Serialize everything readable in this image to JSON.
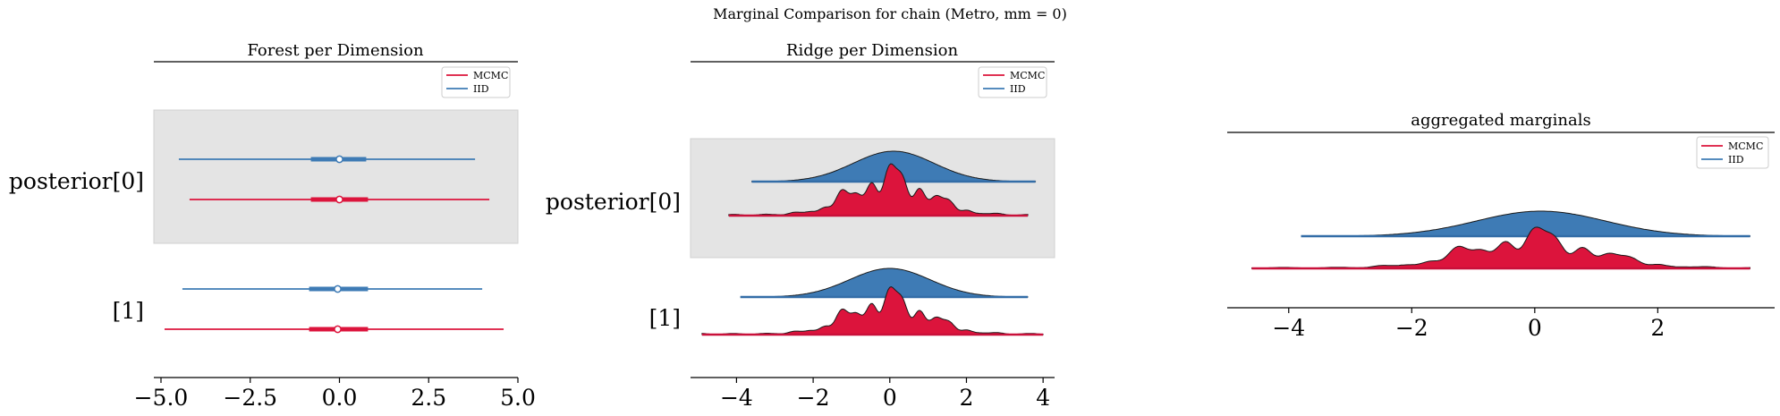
{
  "suptitle": "Marginal Comparison for chain (Metro, mm = 0)",
  "colors": {
    "mcmc": "#dc143c",
    "mcmc_dark": "#c9103a",
    "iid": "#3e7bb5",
    "iid_dark": "#336da7",
    "band": "#e4e4e4"
  },
  "chart_data": [
    {
      "type": "forest",
      "title": "Forest per Dimension",
      "xlabel": "",
      "ylabel": "",
      "xlim": [
        -5.2,
        5.0
      ],
      "xticks": [
        -5.0,
        -2.5,
        0.0,
        2.5,
        5.0
      ],
      "xtick_labels": [
        "−5.0",
        "−2.5",
        "0.0",
        "2.5",
        "5.0"
      ],
      "row_labels": [
        "posterior[0]",
        "[1]"
      ],
      "legend": {
        "placement": "top-right",
        "entries": [
          "MCMC",
          "IID"
        ]
      },
      "series": [
        {
          "name": "IID",
          "row": 0,
          "hdi": [
            -4.5,
            3.8
          ],
          "quartiles": [
            -0.8,
            0.75
          ],
          "median": 0.0
        },
        {
          "name": "MCMC",
          "row": 0,
          "hdi": [
            -4.2,
            4.2
          ],
          "quartiles": [
            -0.8,
            0.8
          ],
          "median": 0.0
        },
        {
          "name": "IID",
          "row": 1,
          "hdi": [
            -4.4,
            4.0
          ],
          "quartiles": [
            -0.85,
            0.8
          ],
          "median": -0.05
        },
        {
          "name": "MCMC",
          "row": 1,
          "hdi": [
            -4.9,
            4.6
          ],
          "quartiles": [
            -0.85,
            0.8
          ],
          "median": -0.05
        }
      ]
    },
    {
      "type": "ridge",
      "title": "Ridge per Dimension",
      "xlabel": "",
      "ylabel": "",
      "xlim": [
        -5.2,
        4.3
      ],
      "xticks": [
        -4,
        -2,
        0,
        2,
        4
      ],
      "xtick_labels": [
        "−4",
        "−2",
        "0",
        "2",
        "4"
      ],
      "row_labels": [
        "posterior[0]",
        "[1]"
      ],
      "legend": {
        "placement": "top-right",
        "entries": [
          "MCMC",
          "IID"
        ]
      },
      "series": [
        {
          "name": "IID",
          "row": 0,
          "range": [
            -3.6,
            3.8
          ],
          "smooth": true,
          "mean": 0.1,
          "sd": 1.05
        },
        {
          "name": "MCMC",
          "row": 0,
          "range": [
            -4.2,
            3.6
          ],
          "smooth": false,
          "mean": 0.0,
          "sd": 1.0
        },
        {
          "name": "IID",
          "row": 1,
          "range": [
            -3.9,
            3.6
          ],
          "smooth": true,
          "mean": 0.0,
          "sd": 1.05
        },
        {
          "name": "MCMC",
          "row": 1,
          "range": [
            -4.9,
            4.0
          ],
          "smooth": false,
          "mean": -0.05,
          "sd": 1.0
        }
      ]
    },
    {
      "type": "ridge",
      "title": "aggregated marginals",
      "xlabel": "",
      "ylabel": "",
      "xlim": [
        -5.0,
        3.9
      ],
      "xticks": [
        -4,
        -2,
        0,
        2
      ],
      "xtick_labels": [
        "−4",
        "−2",
        "0",
        "2"
      ],
      "row_labels": [],
      "legend": {
        "placement": "top-right",
        "entries": [
          "MCMC",
          "IID"
        ]
      },
      "series": [
        {
          "name": "IID",
          "row": 0,
          "range": [
            -3.8,
            3.5
          ],
          "smooth": true,
          "mean": 0.1,
          "sd": 1.05
        },
        {
          "name": "MCMC",
          "row": 0,
          "range": [
            -4.6,
            3.5
          ],
          "smooth": false,
          "mean": -0.05,
          "sd": 1.0
        }
      ]
    }
  ]
}
